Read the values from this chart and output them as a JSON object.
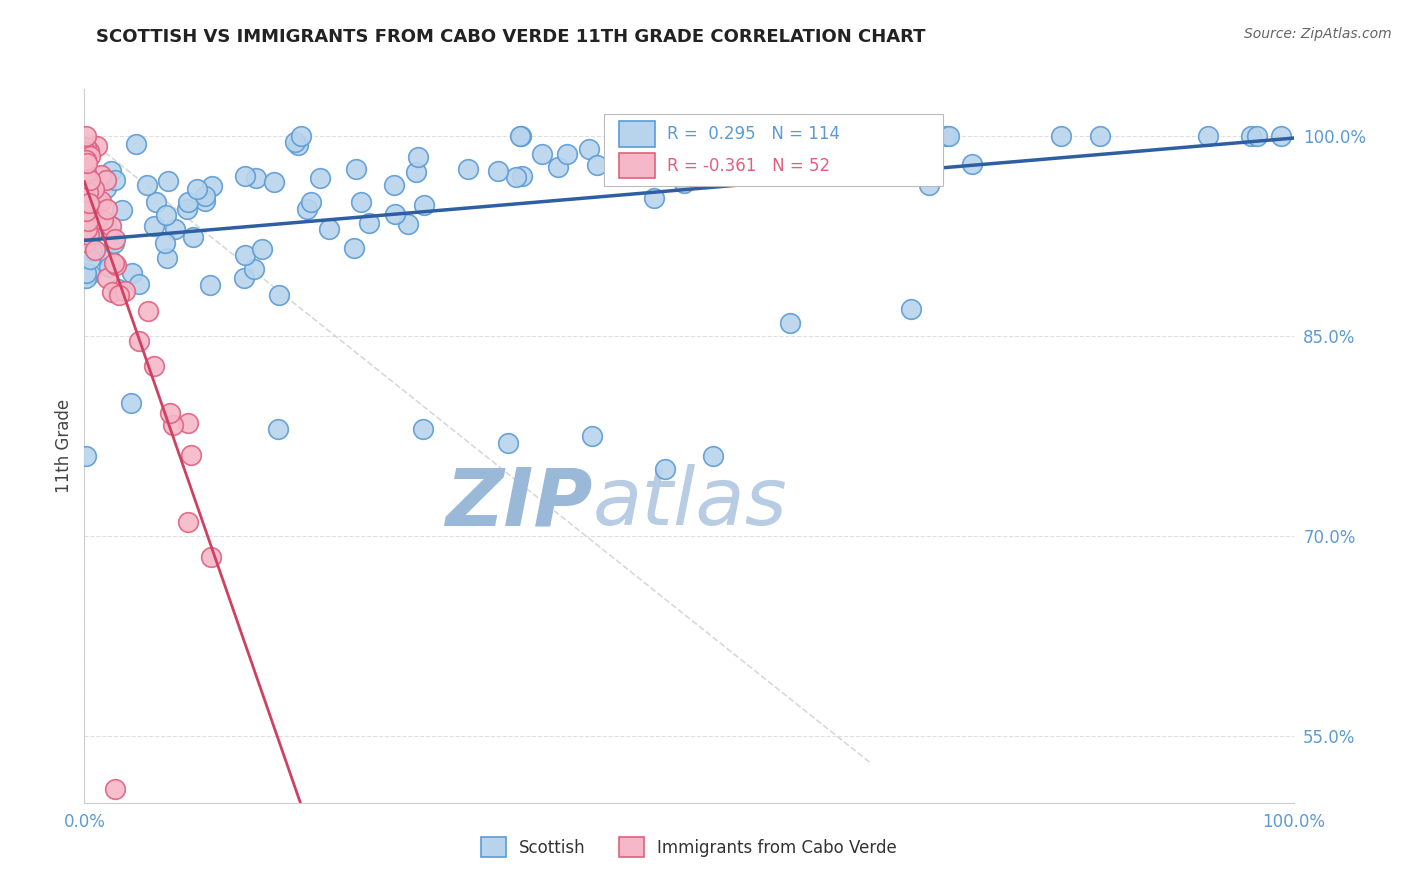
{
  "title": "SCOTTISH VS IMMIGRANTS FROM CABO VERDE 11TH GRADE CORRELATION CHART",
  "source_text": "Source: ZipAtlas.com",
  "ylabel": "11th Grade",
  "watermark_zip": "ZIP",
  "watermark_atlas": "atlas",
  "scatter_color_blue": "#b8d4ec",
  "scatter_edge_blue": "#5b9bd5",
  "scatter_color_pink": "#f4b8c8",
  "scatter_edge_pink": "#e06080",
  "line_color_blue": "#2e5fa3",
  "line_color_pink": "#d04060",
  "line_color_diag": "#c8c8c8",
  "watermark_color_zip": "#9ab8d8",
  "watermark_color_atlas": "#b8cce4",
  "ytick_color": "#5b9bd5",
  "xtick_color": "#5b9bd5",
  "background_color": "#ffffff",
  "title_color": "#222222",
  "ylabel_color": "#444444",
  "legend_text_blue": "R =  0.295   N = 114",
  "legend_text_pink": "R = -0.361   N = 52",
  "bottom_label1": "Scottish",
  "bottom_label2": "Immigrants from Cabo Verde"
}
